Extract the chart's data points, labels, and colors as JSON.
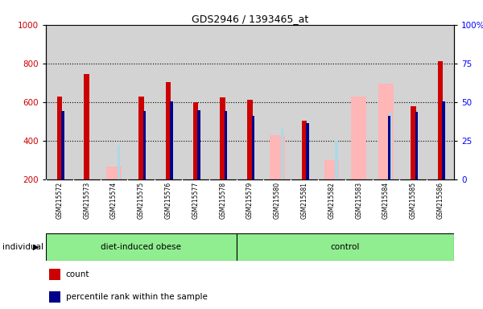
{
  "title": "GDS2946 / 1393465_at",
  "samples": [
    "GSM215572",
    "GSM215573",
    "GSM215574",
    "GSM215575",
    "GSM215576",
    "GSM215577",
    "GSM215578",
    "GSM215579",
    "GSM215580",
    "GSM215581",
    "GSM215582",
    "GSM215583",
    "GSM215584",
    "GSM215585",
    "GSM215586"
  ],
  "groups": [
    {
      "label": "diet-induced obese",
      "start": 0,
      "end": 7
    },
    {
      "label": "control",
      "start": 7,
      "end": 15
    }
  ],
  "group_color": "#90ee90",
  "count_values": [
    630,
    745,
    null,
    630,
    705,
    600,
    625,
    610,
    null,
    505,
    null,
    null,
    null,
    577,
    810
  ],
  "pct_values": [
    555,
    null,
    null,
    553,
    603,
    557,
    552,
    530,
    null,
    490,
    null,
    null,
    530,
    549,
    603
  ],
  "absent_values": [
    null,
    null,
    265,
    null,
    null,
    null,
    null,
    null,
    430,
    null,
    300,
    630,
    695,
    null,
    null
  ],
  "absent_ranks": [
    null,
    null,
    380,
    null,
    null,
    null,
    null,
    null,
    465,
    null,
    400,
    null,
    545,
    null,
    null
  ],
  "ylim_left": [
    200,
    1000
  ],
  "ylim_right": [
    0,
    100
  ],
  "left_ticks": [
    200,
    400,
    600,
    800,
    1000
  ],
  "right_ticks": [
    0,
    25,
    50,
    75,
    100
  ],
  "right_labels": [
    "0",
    "25",
    "50",
    "75",
    "100%"
  ],
  "color_count": "#cc0000",
  "color_pct": "#00008b",
  "color_absent_value": "#ffb6b6",
  "color_absent_rank": "#add8e6",
  "bg_plot": "#d3d3d3",
  "bg_xlabels": "#c8c8c8",
  "grid_dotted_at": [
    400,
    600,
    800
  ],
  "n_samples": 15
}
